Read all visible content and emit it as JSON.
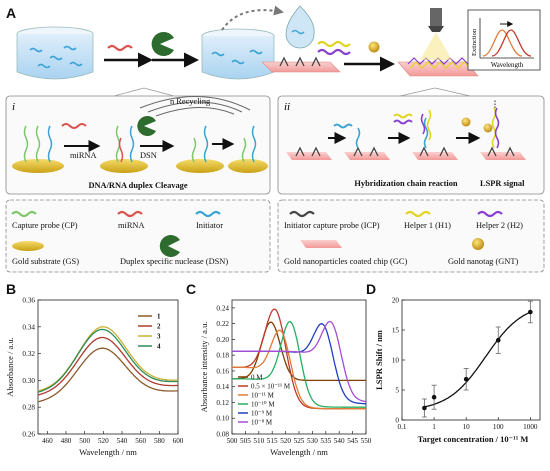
{
  "panel_labels": {
    "a": "A",
    "b": "B",
    "c": "C",
    "d": "D",
    "i": "i",
    "ii": "ii"
  },
  "scheme": {
    "extinction_label": "Extinction",
    "wavelength_label": "Wavelength",
    "i_title": "DNA/RNA duplex Cleavage",
    "ii_title": "Hybridization chain reaction",
    "lspr_signal": "LSPR signal",
    "mirna_step": "miRNA",
    "dsn_step": "DSN",
    "recycling": "n Recycling",
    "colors": {
      "capture": "#7ec86a",
      "mirna": "#d9534f",
      "initiator": "#3ba3d6",
      "icp": "#444444",
      "h1": "#e2d51f",
      "h2": "#8a3fd1",
      "gold": "#e0b81f",
      "chip": "#f4a9a8",
      "accent_red": "#e31a1c"
    }
  },
  "legend_left": [
    {
      "label": "Capture probe (CP)",
      "icon": "capture-probe-icon"
    },
    {
      "label": "miRNA",
      "icon": "mirna-icon"
    },
    {
      "label": "Initiator",
      "icon": "initiator-icon"
    },
    {
      "label": "Gold substrate (GS)",
      "icon": "gold-substrate-icon"
    },
    {
      "label": "Duplex specific nuclease (DSN)",
      "icon": "dsn-icon"
    }
  ],
  "legend_right": [
    {
      "label": "Initiator capture probe (ICP)",
      "icon": "icp-icon"
    },
    {
      "label": "Helper 1 (H1)",
      "icon": "helper1-icon"
    },
    {
      "label": "Helper 2 (H2)",
      "icon": "helper2-icon"
    },
    {
      "label": "Gold nanoparticles coated chip (GC)",
      "icon": "chip-icon"
    },
    {
      "label": "Gold nanotag (GNT)",
      "icon": "gold-nanotag-icon"
    }
  ],
  "chart_data": [
    {
      "id": "B",
      "type": "line",
      "xlabel": "Wavelength / nm",
      "ylabel": "Absorbance / a.u.",
      "xlim": [
        450,
        600
      ],
      "ylim": [
        0.26,
        0.36
      ],
      "xticks": [
        460,
        480,
        500,
        520,
        540,
        560,
        580,
        600
      ],
      "yticks": [
        0.26,
        0.28,
        0.3,
        0.32,
        0.34,
        0.36
      ],
      "series": [
        {
          "name": "1",
          "color": "#8b5a2b",
          "peak_x": 518,
          "peak_y": 0.324,
          "base_left": 0.283,
          "base_right": 0.292
        },
        {
          "name": "2",
          "color": "#b03a2e",
          "peak_x": 518,
          "peak_y": 0.332,
          "base_left": 0.288,
          "base_right": 0.296
        },
        {
          "name": "3",
          "color": "#c9b037",
          "peak_x": 519,
          "peak_y": 0.34,
          "base_left": 0.291,
          "base_right": 0.3
        },
        {
          "name": "4",
          "color": "#2e8b57",
          "peak_x": 518,
          "peak_y": 0.338,
          "base_left": 0.29,
          "base_right": 0.299
        }
      ]
    },
    {
      "id": "C",
      "type": "line",
      "xlabel": "Wavelength / nm",
      "ylabel": "Absorbance intensity / a.u.",
      "xlim": [
        500,
        550
      ],
      "ylim": [
        0.08,
        0.25
      ],
      "xticks": [
        500,
        505,
        510,
        515,
        520,
        525,
        530,
        535,
        540,
        545,
        550
      ],
      "yticks": [
        0.08,
        0.1,
        0.12,
        0.14,
        0.16,
        0.18,
        0.2,
        0.22,
        0.24
      ],
      "series": [
        {
          "name": "0 M",
          "color": "#7b3f00",
          "peak_x": 514.5,
          "peak_y": 0.222,
          "width": 5.0,
          "left": 0.15,
          "right": 0.148
        },
        {
          "name": "0.5 × 10⁻¹¹ M",
          "color": "#c0392b",
          "peak_x": 516.5,
          "peak_y": 0.237,
          "width": 5.5,
          "left": 0.165,
          "right": 0.112
        },
        {
          "name": "10⁻¹¹ M",
          "color": "#e07b39",
          "peak_x": 518.5,
          "peak_y": 0.21,
          "width": 5.0,
          "left": 0.165,
          "right": 0.112
        },
        {
          "name": "10⁻¹⁰ M",
          "color": "#27ae60",
          "peak_x": 522.0,
          "peak_y": 0.222,
          "width": 5.0,
          "left": 0.15,
          "right": 0.114
        },
        {
          "name": "10⁻⁹ M",
          "color": "#1f3fbf",
          "peak_x": 534.5,
          "peak_y": 0.217,
          "width": 5.0,
          "left": 0.185,
          "right": 0.118
        },
        {
          "name": "10⁻⁸ M",
          "color": "#a64dd6",
          "peak_x": 537.5,
          "peak_y": 0.22,
          "width": 5.0,
          "left": 0.185,
          "right": 0.12
        }
      ]
    },
    {
      "id": "D",
      "type": "scatter",
      "xlabel": "Target concentration  / 10⁻¹¹ M",
      "ylabel": "LSPR Shift / nm",
      "xscale": "log",
      "xlim": [
        0.1,
        2000
      ],
      "ylim": [
        0,
        20
      ],
      "xtick_labels": [
        "0.1",
        "1",
        "10",
        "100",
        "1000"
      ],
      "xtick_values": [
        0.1,
        1,
        10,
        100,
        1000
      ],
      "yticks": [
        0,
        5,
        10,
        15,
        20
      ],
      "points": [
        {
          "x": 0.5,
          "y": 2.0,
          "err": 1.5
        },
        {
          "x": 1,
          "y": 3.8,
          "err": 2.0
        },
        {
          "x": 10,
          "y": 6.8,
          "err": 1.8
        },
        {
          "x": 100,
          "y": 13.3,
          "err": 2.2
        },
        {
          "x": 1000,
          "y": 18.0,
          "err": 1.8
        }
      ]
    }
  ]
}
